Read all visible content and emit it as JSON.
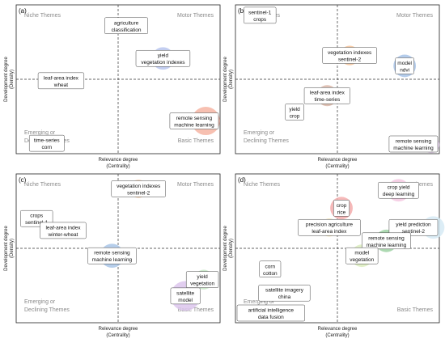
{
  "figure": {
    "quadrant_labels": {
      "top_left": "Niche Themes",
      "top_right": "Motor Themes",
      "bottom_left": [
        "Emerging or",
        "Declining Themes"
      ],
      "bottom_right": "Basic Themes"
    },
    "xlabel": [
      "Relevance degree",
      "(Centrality)"
    ],
    "ylabel": [
      "Development degree",
      "(Density)"
    ]
  },
  "chart_data": [
    {
      "panel": "(a)",
      "type": "scatter",
      "xlabel": "Relevance degree (Centrality)",
      "ylabel": "Development degree (Density)",
      "grid": false,
      "themes": [
        {
          "label": [
            "agriculture",
            "classification"
          ],
          "x": 0.54,
          "y": 0.86,
          "size": 0.3,
          "color": "#cfe0ee"
        },
        {
          "label": [
            "yield",
            "vegetation indexes"
          ],
          "x": 0.72,
          "y": 0.64,
          "size": 0.55,
          "color": "#b9c6ee"
        },
        {
          "label": [
            "leaf-area index",
            "wheat"
          ],
          "x": 0.22,
          "y": 0.49,
          "size": 0.3,
          "color": "#f6c08d"
        },
        {
          "label": [
            "remote sensing",
            "machine learning"
          ],
          "x": 0.93,
          "y": 0.22,
          "size": 0.75,
          "color": "#f6b5a3"
        },
        {
          "label": [
            "time-series",
            "corn"
          ],
          "x": 0.15,
          "y": 0.07,
          "size": 0.12,
          "color": "#d2ebd0"
        }
      ]
    },
    {
      "panel": "(b)",
      "type": "scatter",
      "xlabel": "Relevance degree (Centrality)",
      "ylabel": "Development degree (Density)",
      "grid": false,
      "themes": [
        {
          "label": [
            "sentinel-1",
            "crops"
          ],
          "x": 0.12,
          "y": 0.93,
          "size": 0.12,
          "color": "#f6e2bf"
        },
        {
          "label": [
            "vegetation indexes",
            "sentinel-2"
          ],
          "x": 0.56,
          "y": 0.66,
          "size": 0.45,
          "color": "#f7c49a"
        },
        {
          "label": [
            "model",
            "ndvi"
          ],
          "x": 0.83,
          "y": 0.59,
          "size": 0.55,
          "color": "#a7c3e8"
        },
        {
          "label": [
            "leaf-area index",
            "time-series"
          ],
          "x": 0.45,
          "y": 0.39,
          "size": 0.5,
          "color": "#dbb7a8"
        },
        {
          "label": [
            "yield",
            "crop"
          ],
          "x": 0.29,
          "y": 0.28,
          "size": 0.25,
          "color": "#c6e4bd"
        },
        {
          "label": [
            "remote sensing",
            "machine learning"
          ],
          "x": 0.96,
          "y": 0.06,
          "size": 0.35,
          "color": "#e8d4ee"
        }
      ]
    },
    {
      "panel": "(c)",
      "type": "scatter",
      "xlabel": "Relevance degree (Centrality)",
      "ylabel": "Development degree (Density)",
      "grid": false,
      "themes": [
        {
          "label": [
            "vegetation indexes",
            "sentinel-2"
          ],
          "x": 0.6,
          "y": 0.9,
          "size": 0.4,
          "color": "#f7c49a"
        },
        {
          "label": [
            "crops",
            "sentinel-1"
          ],
          "x": 0.1,
          "y": 0.7,
          "size": 0.12,
          "color": "#f5e3c0"
        },
        {
          "label": [
            "leaf-area index",
            "winter-wheat"
          ],
          "x": 0.23,
          "y": 0.62,
          "size": 0.25,
          "color": "#bfe3bf"
        },
        {
          "label": [
            "remote sensing",
            "machine learning"
          ],
          "x": 0.47,
          "y": 0.45,
          "size": 0.6,
          "color": "#a9c6e8"
        },
        {
          "label": [
            "yield",
            "vegetation"
          ],
          "x": 0.92,
          "y": 0.29,
          "size": 0.45,
          "color": "#c5e8c3"
        },
        {
          "label": [
            "satellite",
            "model"
          ],
          "x": 0.83,
          "y": 0.18,
          "size": 0.8,
          "color": "#dcc6ec"
        }
      ]
    },
    {
      "panel": "(d)",
      "type": "scatter",
      "xlabel": "Relevance degree (Centrality)",
      "ylabel": "Development degree (Density)",
      "grid": false,
      "themes": [
        {
          "label": [
            "crop yield",
            "deep learning"
          ],
          "x": 0.8,
          "y": 0.89,
          "size": 0.55,
          "color": "#f5c9e2"
        },
        {
          "label": [
            "crop",
            "rice"
          ],
          "x": 0.52,
          "y": 0.77,
          "size": 0.55,
          "color": "#f5adad"
        },
        {
          "label": [
            "yield prediction",
            "sentinel-2"
          ],
          "x": 0.97,
          "y": 0.64,
          "size": 0.55,
          "color": "#d6eaf4"
        },
        {
          "label": [
            "precision agriculture",
            "leaf-area index"
          ],
          "x": 0.46,
          "y": 0.64,
          "size": 0.4,
          "color": "#f4e6b8"
        },
        {
          "label": [
            "remote sensing",
            "machine learning"
          ],
          "x": 0.74,
          "y": 0.55,
          "size": 0.55,
          "color": "#9fd2a4"
        },
        {
          "label": [
            "model",
            "vegetation"
          ],
          "x": 0.62,
          "y": 0.45,
          "size": 0.55,
          "color": "#dcedbe"
        },
        {
          "label": [
            "corn",
            "cotton"
          ],
          "x": 0.17,
          "y": 0.36,
          "size": 0.25,
          "color": "#cdd6ea"
        },
        {
          "label": [
            "satellite imagery",
            "china"
          ],
          "x": 0.24,
          "y": 0.2,
          "size": 0.25,
          "color": "#b6d3ee"
        },
        {
          "label": [
            "artificial intelligence",
            "data fusion"
          ],
          "x": 0.11,
          "y": 0.06,
          "size": 0.12,
          "color": "#d7ecd3"
        }
      ]
    }
  ]
}
